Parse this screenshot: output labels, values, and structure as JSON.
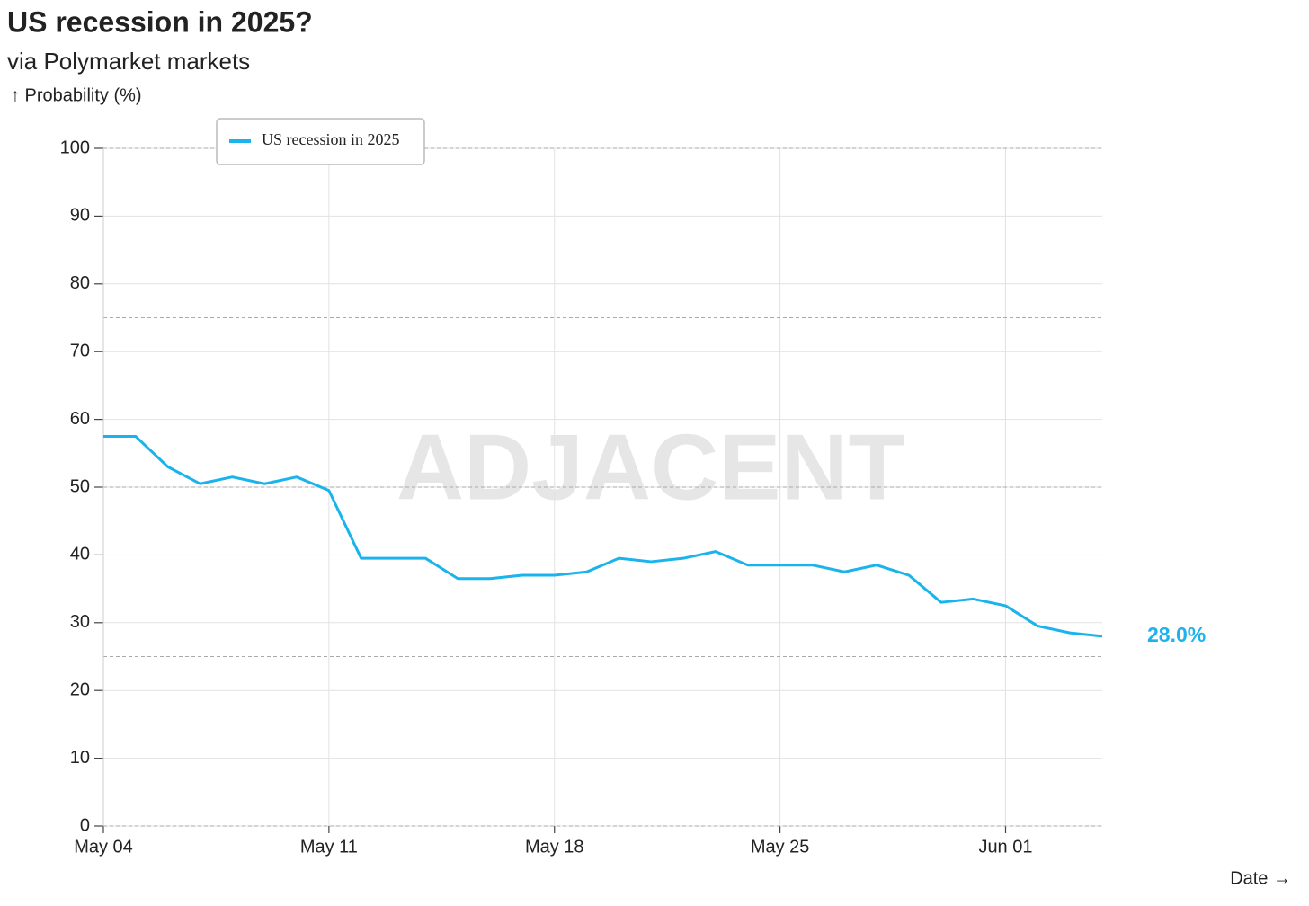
{
  "chart_data": {
    "type": "line",
    "title": "US recession in 2025?",
    "subtitle": "via Polymarket markets",
    "y_label": "↑ Probability (%)",
    "x_label": "Date →",
    "watermark": "ADJACENT",
    "categories": [
      "May 04",
      null,
      null,
      null,
      null,
      null,
      null,
      "May 11",
      null,
      null,
      null,
      null,
      null,
      null,
      "May 18",
      null,
      null,
      null,
      null,
      null,
      null,
      "May 25",
      null,
      null,
      null,
      null,
      null,
      null,
      "Jun 01",
      null,
      null,
      null
    ],
    "series": [
      {
        "name": "US recession in 2025",
        "color": "#1ab3ec",
        "values": [
          57.5,
          57.5,
          53,
          50.5,
          51.5,
          50.5,
          51.5,
          49.5,
          39.5,
          39.5,
          39.5,
          36.5,
          36.5,
          37,
          37,
          37.5,
          39.5,
          39,
          39.5,
          40.5,
          38.5,
          38.5,
          38.5,
          37.5,
          38.5,
          37,
          33,
          33.5,
          32.5,
          29.5,
          28.5,
          28
        ],
        "value_labels": [
          null,
          null,
          null,
          null,
          null,
          null,
          null,
          null,
          null,
          null,
          null,
          null,
          null,
          null,
          null,
          null,
          null,
          null,
          null,
          null,
          null,
          null,
          null,
          null,
          null,
          null,
          null,
          null,
          null,
          null,
          null,
          "28.0%"
        ]
      }
    ],
    "ylim": [
      0,
      100
    ],
    "yticks": [
      0,
      10,
      20,
      30,
      40,
      50,
      60,
      70,
      80,
      90,
      100
    ],
    "reference_lines": [
      25,
      50,
      75,
      100
    ],
    "grid": true,
    "legend": "top-left"
  }
}
